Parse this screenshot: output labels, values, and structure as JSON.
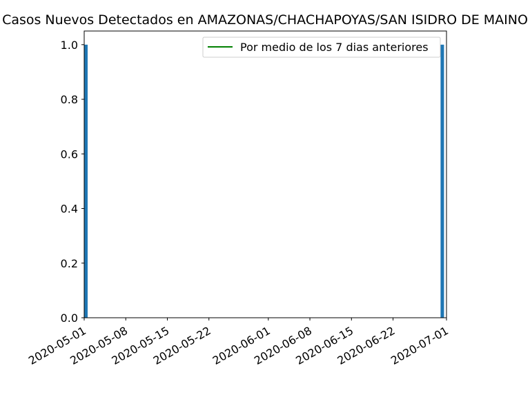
{
  "chart_data": {
    "type": "bar",
    "title": "Casos Nuevos Detectados en AMAZONAS/CHACHAPOYAS/SAN ISIDRO DE MAINO",
    "xlabel": "",
    "ylabel": "",
    "x_type": "date",
    "xlim": [
      "2020-05-01",
      "2020-07-01"
    ],
    "ylim": [
      0,
      1.05
    ],
    "x_ticks": [
      "2020-05-01",
      "2020-05-08",
      "2020-05-15",
      "2020-05-22",
      "2020-06-01",
      "2020-06-08",
      "2020-06-15",
      "2020-06-22",
      "2020-07-01"
    ],
    "y_ticks": [
      "0.0",
      "0.2",
      "0.4",
      "0.6",
      "0.8",
      "1.0"
    ],
    "bars": [
      {
        "date": "2020-05-01",
        "value": 1
      },
      {
        "date": "2020-06-30",
        "value": 1
      }
    ],
    "bar_color": "#1f77b4",
    "series": [
      {
        "name": "Por medio de los 7 dias anteriores",
        "color": "#008000",
        "type": "line",
        "values": []
      }
    ],
    "legend_position": "top-right",
    "grid": false
  }
}
